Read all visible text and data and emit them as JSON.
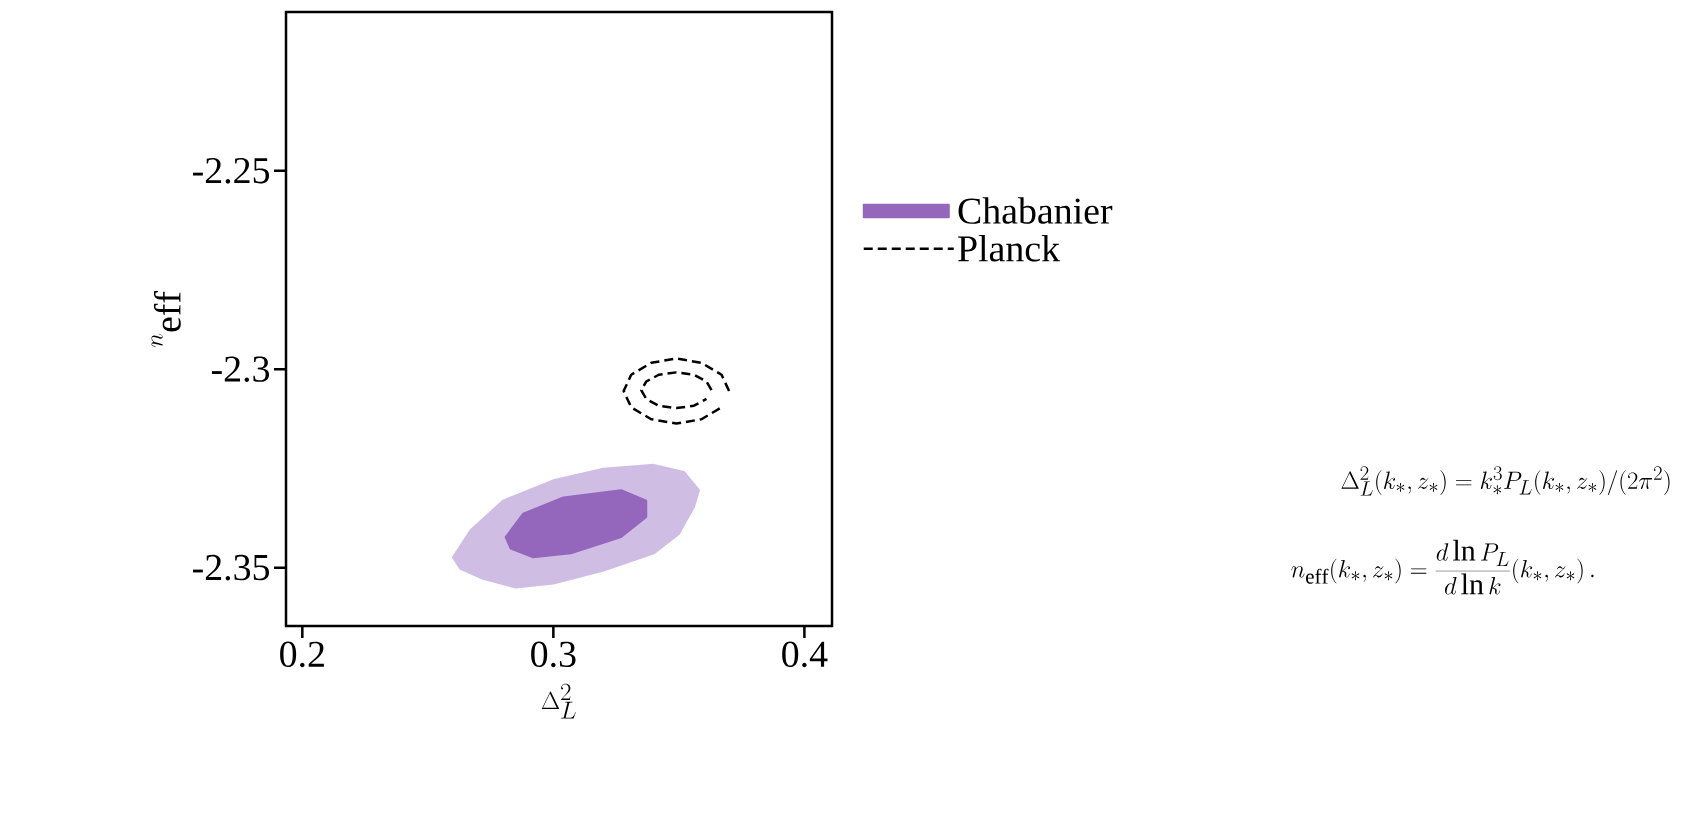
{
  "chart_data": {
    "type": "area",
    "xlabel": "\\Delta_L^2",
    "ylabel": "n_{\\rm eff}",
    "xlim": [
      0.1935,
      0.411
    ],
    "ylim": [
      -2.3647,
      -2.21
    ],
    "xticks": [
      0.2,
      0.3,
      0.4
    ],
    "yticks": [
      -2.25,
      -2.3,
      -2.35
    ],
    "legend": "right",
    "grid": false,
    "series": [
      {
        "color": "#cfbde4",
        "x": [
          0.26,
          0.267,
          0.28,
          0.3,
          0.32,
          0.34,
          0.352,
          0.358,
          0.356,
          0.35,
          0.34,
          0.32,
          0.3,
          0.285,
          0.272,
          0.263
        ],
        "values": [
          -2.3474,
          -2.3406,
          -2.3331,
          -2.328,
          -2.3251,
          -2.3241,
          -2.3259,
          -2.3305,
          -2.3347,
          -2.3415,
          -2.3464,
          -2.3507,
          -2.354,
          -2.355,
          -2.3528,
          -2.3503
        ]
      },
      {
        "name": "Chabanier",
        "color": "#9467bd",
        "x": [
          0.281,
          0.288,
          0.304,
          0.327,
          0.337,
          0.337,
          0.327,
          0.307,
          0.292,
          0.283
        ],
        "values": [
          -2.3423,
          -2.3364,
          -2.3323,
          -2.3305,
          -2.3331,
          -2.3372,
          -2.3423,
          -2.3464,
          -2.3474,
          -2.3452
        ]
      },
      {
        "type": "line",
        "name": "Planck",
        "color": "#000000",
        "line_style": "dashed",
        "x": [
          0.37,
          0.367,
          0.359,
          0.349,
          0.339,
          0.331,
          0.328,
          0.331,
          0.339,
          0.349,
          0.359,
          0.367
        ],
        "values": [
          -2.3055,
          -2.3014,
          -2.2984,
          -2.2973,
          -2.2984,
          -2.3014,
          -2.3055,
          -2.3096,
          -2.3126,
          -2.3137,
          -2.3126,
          -2.3096
        ]
      },
      {
        "type": "line",
        "color": "#000000",
        "line_style": "dashed",
        "x": [
          0.363,
          0.361,
          0.356,
          0.349,
          0.342,
          0.337,
          0.335,
          0.337,
          0.342,
          0.349,
          0.356,
          0.361
        ],
        "values": [
          -2.3053,
          -2.3031,
          -2.3014,
          -2.3008,
          -2.3014,
          -2.3031,
          -2.3053,
          -2.3075,
          -2.3092,
          -2.3098,
          -2.3092,
          -2.3075
        ]
      }
    ],
    "annotations": [
      "\\Delta_L^2(k_*, z_*) = k_*^3 P_L(k_*, z_*)/(2\\pi^2)",
      "n_{\\rm eff}(k_*, z_*) = \\frac{d\\ln P_L}{d\\ln k}(k_*, z_*)\\,."
    ]
  }
}
